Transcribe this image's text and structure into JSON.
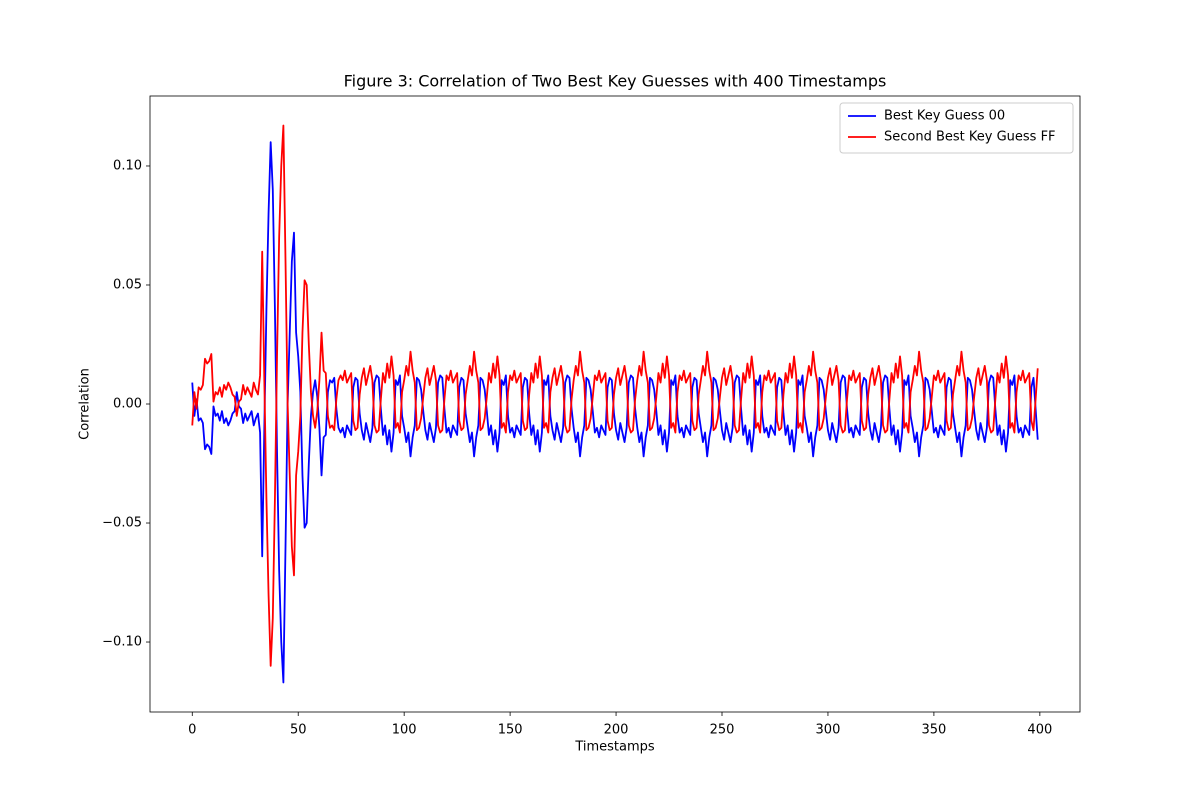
{
  "chart_data": {
    "type": "line",
    "title": "Figure 3: Correlation of Two Best Key Guesses with 400 Timestamps",
    "xlabel": "Timestamps",
    "ylabel": "Correlation",
    "xlim": [
      -19.95,
      418.95
    ],
    "ylim": [
      -0.1294,
      0.1294
    ],
    "xticks": [
      0,
      50,
      100,
      150,
      200,
      250,
      300,
      350,
      400
    ],
    "yticks": [
      {
        "value": -0.1,
        "label": "−0.10"
      },
      {
        "value": -0.05,
        "label": "−0.05"
      },
      {
        "value": 0,
        "label": "0.00"
      },
      {
        "value": 0.05,
        "label": "0.05"
      },
      {
        "value": 0.1,
        "label": "0.10"
      }
    ],
    "grid": false,
    "legend": "upper right",
    "x": [
      0,
      1,
      2,
      3,
      4,
      5,
      6,
      7,
      8,
      9,
      10,
      11,
      12,
      13,
      14,
      15,
      16,
      17,
      18,
      19,
      20,
      21,
      22,
      23,
      24,
      25,
      26,
      27,
      28,
      29,
      30,
      31,
      32,
      33,
      34,
      35,
      36,
      37,
      38,
      39,
      40,
      41,
      42,
      43,
      44,
      45,
      46,
      47,
      48,
      49,
      50,
      51,
      52,
      53,
      54,
      55,
      56,
      57,
      58,
      59,
      60,
      61,
      62,
      63,
      64,
      65,
      66,
      67,
      68,
      69,
      70,
      71,
      72,
      73,
      74,
      75,
      76,
      77,
      78,
      79,
      80,
      81,
      82,
      83,
      84,
      85,
      86,
      87,
      88,
      89,
      90,
      91,
      92,
      93,
      94,
      95,
      96,
      97,
      98,
      99,
      100,
      101,
      102,
      103,
      104,
      105,
      106,
      107,
      108,
      109,
      110,
      111,
      112,
      113,
      114,
      115,
      116,
      117,
      118,
      119,
      120,
      121,
      122,
      123,
      124,
      125,
      126,
      127,
      128,
      129,
      130,
      131,
      132,
      133,
      134,
      135,
      136,
      137,
      138,
      139,
      140,
      141,
      142,
      143,
      144,
      145,
      146,
      147,
      148,
      149,
      150,
      151,
      152,
      153,
      154,
      155,
      156,
      157,
      158,
      159,
      160,
      161,
      162,
      163,
      164,
      165,
      166,
      167,
      168,
      169,
      170,
      171,
      172,
      173,
      174,
      175,
      176,
      177,
      178,
      179,
      180,
      181,
      182,
      183,
      184,
      185,
      186,
      187,
      188,
      189,
      190,
      191,
      192,
      193,
      194,
      195,
      196,
      197,
      198,
      199,
      200,
      201,
      202,
      203,
      204,
      205,
      206,
      207,
      208,
      209,
      210,
      211,
      212,
      213,
      214,
      215,
      216,
      217,
      218,
      219,
      220,
      221,
      222,
      223,
      224,
      225,
      226,
      227,
      228,
      229,
      230,
      231,
      232,
      233,
      234,
      235,
      236,
      237,
      238,
      239,
      240,
      241,
      242,
      243,
      244,
      245,
      246,
      247,
      248,
      249,
      250,
      251,
      252,
      253,
      254,
      255,
      256,
      257,
      258,
      259,
      260,
      261,
      262,
      263,
      264,
      265,
      266,
      267,
      268,
      269,
      270,
      271,
      272,
      273,
      274,
      275,
      276,
      277,
      278,
      279,
      280,
      281,
      282,
      283,
      284,
      285,
      286,
      287,
      288,
      289,
      290,
      291,
      292,
      293,
      294,
      295,
      296,
      297,
      298,
      299,
      300,
      301,
      302,
      303,
      304,
      305,
      306,
      307,
      308,
      309,
      310,
      311,
      312,
      313,
      314,
      315,
      316,
      317,
      318,
      319,
      320,
      321,
      322,
      323,
      324,
      325,
      326,
      327,
      328,
      329,
      330,
      331,
      332,
      333,
      334,
      335,
      336,
      337,
      338,
      339,
      340,
      341,
      342,
      343,
      344,
      345,
      346,
      347,
      348,
      349,
      350,
      351,
      352,
      353,
      354,
      355,
      356,
      357,
      358,
      359,
      360,
      361,
      362,
      363,
      364,
      365,
      366,
      367,
      368,
      369,
      370,
      371,
      372,
      373,
      374,
      375,
      376,
      377,
      378,
      379,
      380,
      381,
      382,
      383,
      384,
      385,
      386,
      387,
      388,
      389,
      390,
      391,
      392,
      393,
      394,
      395,
      396,
      397,
      398,
      399
    ],
    "series": [
      {
        "name": "Best Key Guess 00",
        "color": "#0000ff",
        "values": [
          0.009,
          -0.005,
          0.002,
          -0.007,
          -0.006,
          -0.008,
          -0.019,
          -0.017,
          -0.018,
          -0.021,
          -0.001,
          -0.005,
          -0.004,
          -0.007,
          -0.003,
          -0.008,
          -0.006,
          -0.009,
          -0.007,
          -0.004,
          -0.003,
          0.005,
          -0.001,
          -0.002,
          -0.008,
          -0.004,
          -0.007,
          -0.005,
          -0.003,
          -0.009,
          -0.006,
          -0.004,
          -0.012,
          -0.064,
          -0.01,
          0.04,
          0.08,
          0.11,
          0.09,
          0.04,
          -0.02,
          -0.07,
          -0.1,
          -0.117,
          -0.06,
          0,
          0.03,
          0.06,
          0.072,
          0.03,
          0.02,
          0.005,
          -0.03,
          -0.052,
          -0.05,
          -0.025,
          -0.005,
          0.005,
          0.01,
          0.003,
          -0.01,
          -0.03,
          -0.014,
          -0.013,
          0.005,
          0.01,
          0.009,
          0.011,
          -0.002,
          -0.01,
          -0.012,
          -0.01,
          -0.014,
          -0.009,
          -0.011,
          -0.013,
          0.007,
          0.011,
          0.01,
          -0.004,
          -0.011,
          -0.015,
          -0.008,
          -0.012,
          -0.016,
          -0.01,
          0.009,
          0.012,
          0.011,
          -0.002,
          -0.013,
          -0.009,
          -0.017,
          -0.011,
          -0.02,
          -0.012,
          0.01,
          0.008,
          0.012,
          -0.005,
          -0.01,
          -0.016,
          -0.012,
          -0.022,
          -0.014,
          -0.009,
          0.011,
          0.01,
          0.006,
          -0.003,
          -0.011,
          -0.015,
          -0.008,
          -0.012,
          -0.016,
          -0.01,
          0.009,
          0.012,
          0.011,
          -0.002,
          -0.012,
          -0.01,
          -0.014,
          -0.009,
          -0.011,
          -0.013,
          0.007,
          0.011,
          0.01,
          -0.004,
          -0.01,
          -0.016,
          -0.012,
          -0.022,
          -0.014,
          -0.009,
          0.011,
          0.01,
          0.006,
          -0.003,
          -0.013,
          -0.009,
          -0.017,
          -0.011,
          -0.02,
          -0.012,
          0.01,
          0.008,
          0.012,
          -0.005,
          -0.012,
          -0.01,
          -0.014,
          -0.009,
          -0.011,
          -0.013,
          0.007,
          0.011,
          0.01,
          -0.004,
          -0.013,
          -0.009,
          -0.017,
          -0.011,
          -0.02,
          -0.012,
          0.01,
          0.008,
          0.012,
          -0.005,
          -0.011,
          -0.015,
          -0.008,
          -0.012,
          -0.016,
          -0.01,
          0.009,
          0.012,
          0.011,
          -0.002,
          -0.01,
          -0.016,
          -0.012,
          -0.022,
          -0.014,
          -0.009,
          0.011,
          0.01,
          0.006,
          -0.003,
          -0.012,
          -0.01,
          -0.014,
          -0.009,
          -0.011,
          -0.013,
          0.007,
          0.011,
          0.01,
          -0.004,
          -0.011,
          -0.015,
          -0.008,
          -0.012,
          -0.016,
          -0.01,
          0.009,
          0.012,
          0.011,
          -0.002,
          -0.01,
          -0.016,
          -0.012,
          -0.022,
          -0.014,
          -0.009,
          0.011,
          0.01,
          0.006,
          -0.003,
          -0.013,
          -0.009,
          -0.017,
          -0.011,
          -0.02,
          -0.012,
          0.01,
          0.008,
          0.012,
          -0.005,
          -0.012,
          -0.01,
          -0.014,
          -0.009,
          -0.011,
          -0.013,
          0.007,
          0.011,
          0.01,
          -0.004,
          -0.01,
          -0.016,
          -0.012,
          -0.022,
          -0.014,
          -0.009,
          0.011,
          0.01,
          0.006,
          -0.003,
          -0.011,
          -0.015,
          -0.008,
          -0.012,
          -0.016,
          -0.01,
          0.009,
          0.012,
          0.011,
          -0.002,
          -0.013,
          -0.009,
          -0.017,
          -0.011,
          -0.02,
          -0.012,
          0.01,
          0.008,
          0.012,
          -0.005,
          -0.012,
          -0.01,
          -0.014,
          -0.009,
          -0.011,
          -0.013,
          0.007,
          0.011,
          0.01,
          -0.004,
          -0.013,
          -0.009,
          -0.017,
          -0.011,
          -0.02,
          -0.012,
          0.01,
          0.008,
          0.012,
          -0.005,
          -0.01,
          -0.016,
          -0.012,
          -0.022,
          -0.014,
          -0.009,
          0.011,
          0.01,
          0.006,
          -0.003,
          -0.011,
          -0.015,
          -0.008,
          -0.012,
          -0.016,
          -0.01,
          0.009,
          0.012,
          0.011,
          -0.002,
          -0.012,
          -0.01,
          -0.014,
          -0.009,
          -0.011,
          -0.013,
          0.007,
          0.011,
          0.01,
          -0.004,
          -0.011,
          -0.015,
          -0.008,
          -0.012,
          -0.016,
          -0.01,
          0.009,
          0.012,
          0.011,
          -0.002,
          -0.013,
          -0.009,
          -0.017,
          -0.011,
          -0.02,
          -0.012,
          0.01,
          0.008,
          0.012,
          -0.005,
          -0.01,
          -0.016,
          -0.012,
          -0.022,
          -0.014,
          -0.009,
          0.011,
          0.01,
          0.006,
          -0.003,
          -0.012,
          -0.01,
          -0.014,
          -0.009,
          -0.011,
          -0.013,
          0.007,
          0.011,
          0.01,
          -0.004,
          -0.01,
          -0.016,
          -0.012,
          -0.022,
          -0.014,
          -0.009,
          0.011,
          0.01,
          0.006,
          -0.003,
          -0.011,
          -0.015,
          -0.008,
          -0.012,
          -0.016,
          -0.01,
          0.009,
          0.012,
          0.011,
          -0.002,
          -0.013,
          -0.009,
          -0.017,
          -0.011,
          -0.02,
          -0.012,
          0.01,
          0.008,
          0.012,
          -0.005,
          -0.012,
          -0.01,
          -0.014,
          -0.009,
          -0.011,
          -0.013,
          0.007,
          0.011,
          -0.002,
          -0.015
        ]
      },
      {
        "name": "Second Best Key Guess FF",
        "color": "#ff0000",
        "values": [
          -0.009,
          0.005,
          -0.002,
          0.007,
          0.006,
          0.008,
          0.019,
          0.017,
          0.018,
          0.021,
          0.001,
          0.005,
          0.004,
          0.007,
          0.003,
          0.008,
          0.006,
          0.009,
          0.007,
          0.004,
          0.003,
          -0.005,
          0.001,
          0.002,
          0.008,
          0.004,
          0.007,
          0.005,
          0.003,
          0.009,
          0.006,
          0.004,
          0.012,
          0.064,
          0.01,
          -0.04,
          -0.08,
          -0.11,
          -0.09,
          -0.04,
          0.02,
          0.07,
          0.1,
          0.117,
          0.06,
          0,
          -0.03,
          -0.06,
          -0.072,
          -0.03,
          -0.02,
          -0.005,
          0.03,
          0.052,
          0.05,
          0.025,
          0.005,
          -0.005,
          -0.01,
          -0.003,
          0.01,
          0.03,
          0.014,
          0.013,
          -0.005,
          -0.01,
          -0.009,
          -0.011,
          0.002,
          0.01,
          0.012,
          0.01,
          0.014,
          0.009,
          0.011,
          0.013,
          -0.007,
          -0.011,
          -0.01,
          0.004,
          0.011,
          0.015,
          0.008,
          0.012,
          0.016,
          0.01,
          -0.009,
          -0.012,
          -0.011,
          0.002,
          0.013,
          0.009,
          0.017,
          0.011,
          0.02,
          0.012,
          -0.01,
          -0.008,
          -0.012,
          0.005,
          0.01,
          0.016,
          0.012,
          0.022,
          0.014,
          0.009,
          -0.011,
          -0.01,
          -0.006,
          0.003,
          0.011,
          0.015,
          0.008,
          0.012,
          0.016,
          0.01,
          -0.009,
          -0.012,
          -0.011,
          0.002,
          0.012,
          0.01,
          0.014,
          0.009,
          0.011,
          0.013,
          -0.007,
          -0.011,
          -0.01,
          0.004,
          0.01,
          0.016,
          0.012,
          0.022,
          0.014,
          0.009,
          -0.011,
          -0.01,
          -0.006,
          0.003,
          0.013,
          0.009,
          0.017,
          0.011,
          0.02,
          0.012,
          -0.01,
          -0.008,
          -0.012,
          0.005,
          0.012,
          0.01,
          0.014,
          0.009,
          0.011,
          0.013,
          -0.007,
          -0.011,
          -0.01,
          0.004,
          0.013,
          0.009,
          0.017,
          0.011,
          0.02,
          0.012,
          -0.01,
          -0.008,
          -0.012,
          0.005,
          0.011,
          0.015,
          0.008,
          0.012,
          0.016,
          0.01,
          -0.009,
          -0.012,
          -0.011,
          0.002,
          0.01,
          0.016,
          0.012,
          0.022,
          0.014,
          0.009,
          -0.011,
          -0.01,
          -0.006,
          0.003,
          0.012,
          0.01,
          0.014,
          0.009,
          0.011,
          0.013,
          -0.007,
          -0.011,
          -0.01,
          0.004,
          0.011,
          0.015,
          0.008,
          0.012,
          0.016,
          0.01,
          -0.009,
          -0.012,
          -0.011,
          0.002,
          0.01,
          0.016,
          0.012,
          0.022,
          0.014,
          0.009,
          -0.011,
          -0.01,
          -0.006,
          0.003,
          0.013,
          0.009,
          0.017,
          0.011,
          0.02,
          0.012,
          -0.01,
          -0.008,
          -0.012,
          0.005,
          0.012,
          0.01,
          0.014,
          0.009,
          0.011,
          0.013,
          -0.007,
          -0.011,
          -0.01,
          0.004,
          0.01,
          0.016,
          0.012,
          0.022,
          0.014,
          0.009,
          -0.011,
          -0.01,
          -0.006,
          0.003,
          0.011,
          0.015,
          0.008,
          0.012,
          0.016,
          0.01,
          -0.009,
          -0.012,
          -0.011,
          0.002,
          0.013,
          0.009,
          0.017,
          0.011,
          0.02,
          0.012,
          -0.01,
          -0.008,
          -0.012,
          0.005,
          0.012,
          0.01,
          0.014,
          0.009,
          0.011,
          0.013,
          -0.007,
          -0.011,
          -0.01,
          0.004,
          0.013,
          0.009,
          0.017,
          0.011,
          0.02,
          0.012,
          -0.01,
          -0.008,
          -0.012,
          0.005,
          0.01,
          0.016,
          0.012,
          0.022,
          0.014,
          0.009,
          -0.011,
          -0.01,
          -0.006,
          0.003,
          0.011,
          0.015,
          0.008,
          0.012,
          0.016,
          0.01,
          -0.009,
          -0.012,
          -0.011,
          0.002,
          0.012,
          0.01,
          0.014,
          0.009,
          0.011,
          0.013,
          -0.007,
          -0.011,
          -0.01,
          0.004,
          0.011,
          0.015,
          0.008,
          0.012,
          0.016,
          0.01,
          -0.009,
          -0.012,
          -0.011,
          0.002,
          0.013,
          0.009,
          0.017,
          0.011,
          0.02,
          0.012,
          -0.01,
          -0.008,
          -0.012,
          0.005,
          0.01,
          0.016,
          0.012,
          0.022,
          0.014,
          0.009,
          -0.011,
          -0.01,
          -0.006,
          0.003,
          0.012,
          0.01,
          0.014,
          0.009,
          0.011,
          0.013,
          -0.007,
          -0.011,
          -0.01,
          0.004,
          0.01,
          0.016,
          0.012,
          0.022,
          0.014,
          0.009,
          -0.011,
          -0.01,
          -0.006,
          0.003,
          0.011,
          0.015,
          0.008,
          0.012,
          0.016,
          0.01,
          -0.009,
          -0.012,
          -0.011,
          0.002,
          0.013,
          0.009,
          0.017,
          0.011,
          0.02,
          0.012,
          -0.01,
          -0.008,
          -0.012,
          0.005,
          0.012,
          0.01,
          0.014,
          0.009,
          0.011,
          0.013,
          -0.007,
          -0.011,
          0.002,
          0.015
        ]
      }
    ]
  }
}
